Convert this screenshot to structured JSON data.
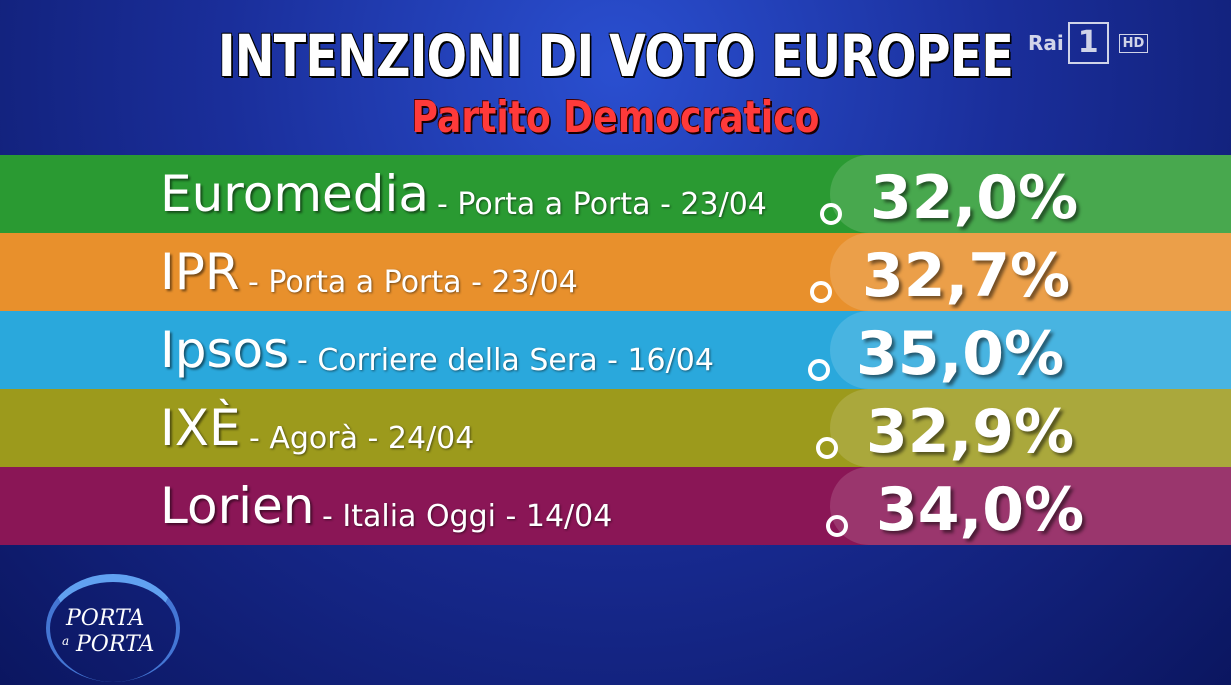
{
  "header": {
    "title": "INTENZIONI DI VOTO EUROPEE",
    "subtitle": "Partito Democratico"
  },
  "rows": [
    {
      "institute": "Euromedia",
      "detail": "- Porta a Porta - 23/04",
      "value": "32,0%"
    },
    {
      "institute": "IPR",
      "detail": "- Porta a Porta - 23/04",
      "value": "32,7%"
    },
    {
      "institute": "Ipsos",
      "detail": "- Corriere della Sera - 16/04",
      "value": "35,0%"
    },
    {
      "institute": "IXÈ",
      "detail": "- Agorà - 24/04",
      "value": "32,9%"
    },
    {
      "institute": "Lorien",
      "detail": "- Italia Oggi - 14/04",
      "value": "34,0%"
    }
  ],
  "channel_logo": {
    "brand": "Rai",
    "number": "1",
    "quality": "HD"
  },
  "show_logo": {
    "line1": "PORTA",
    "joiner": "a",
    "line2": "PORTA"
  }
}
